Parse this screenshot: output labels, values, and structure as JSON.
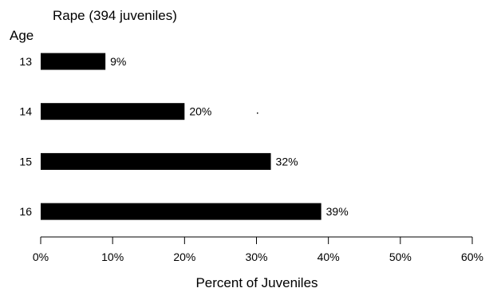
{
  "chart_data": {
    "type": "bar",
    "orientation": "horizontal",
    "title": "Rape (394 juveniles)",
    "ylabel": "Age",
    "xlabel": "Percent of Juveniles",
    "categories": [
      "13",
      "14",
      "15",
      "16"
    ],
    "values": [
      9,
      20,
      32,
      39
    ],
    "value_labels": [
      "9%",
      "20%",
      "32%",
      "39%"
    ],
    "xlim": [
      0,
      60
    ],
    "xticks": [
      0,
      10,
      20,
      30,
      40,
      50,
      60
    ],
    "xtick_labels": [
      "0%",
      "10%",
      "20%",
      "30%",
      "40%",
      "50%",
      "60%"
    ],
    "bar_color": "#000000",
    "grid": false,
    "legend": "none"
  }
}
